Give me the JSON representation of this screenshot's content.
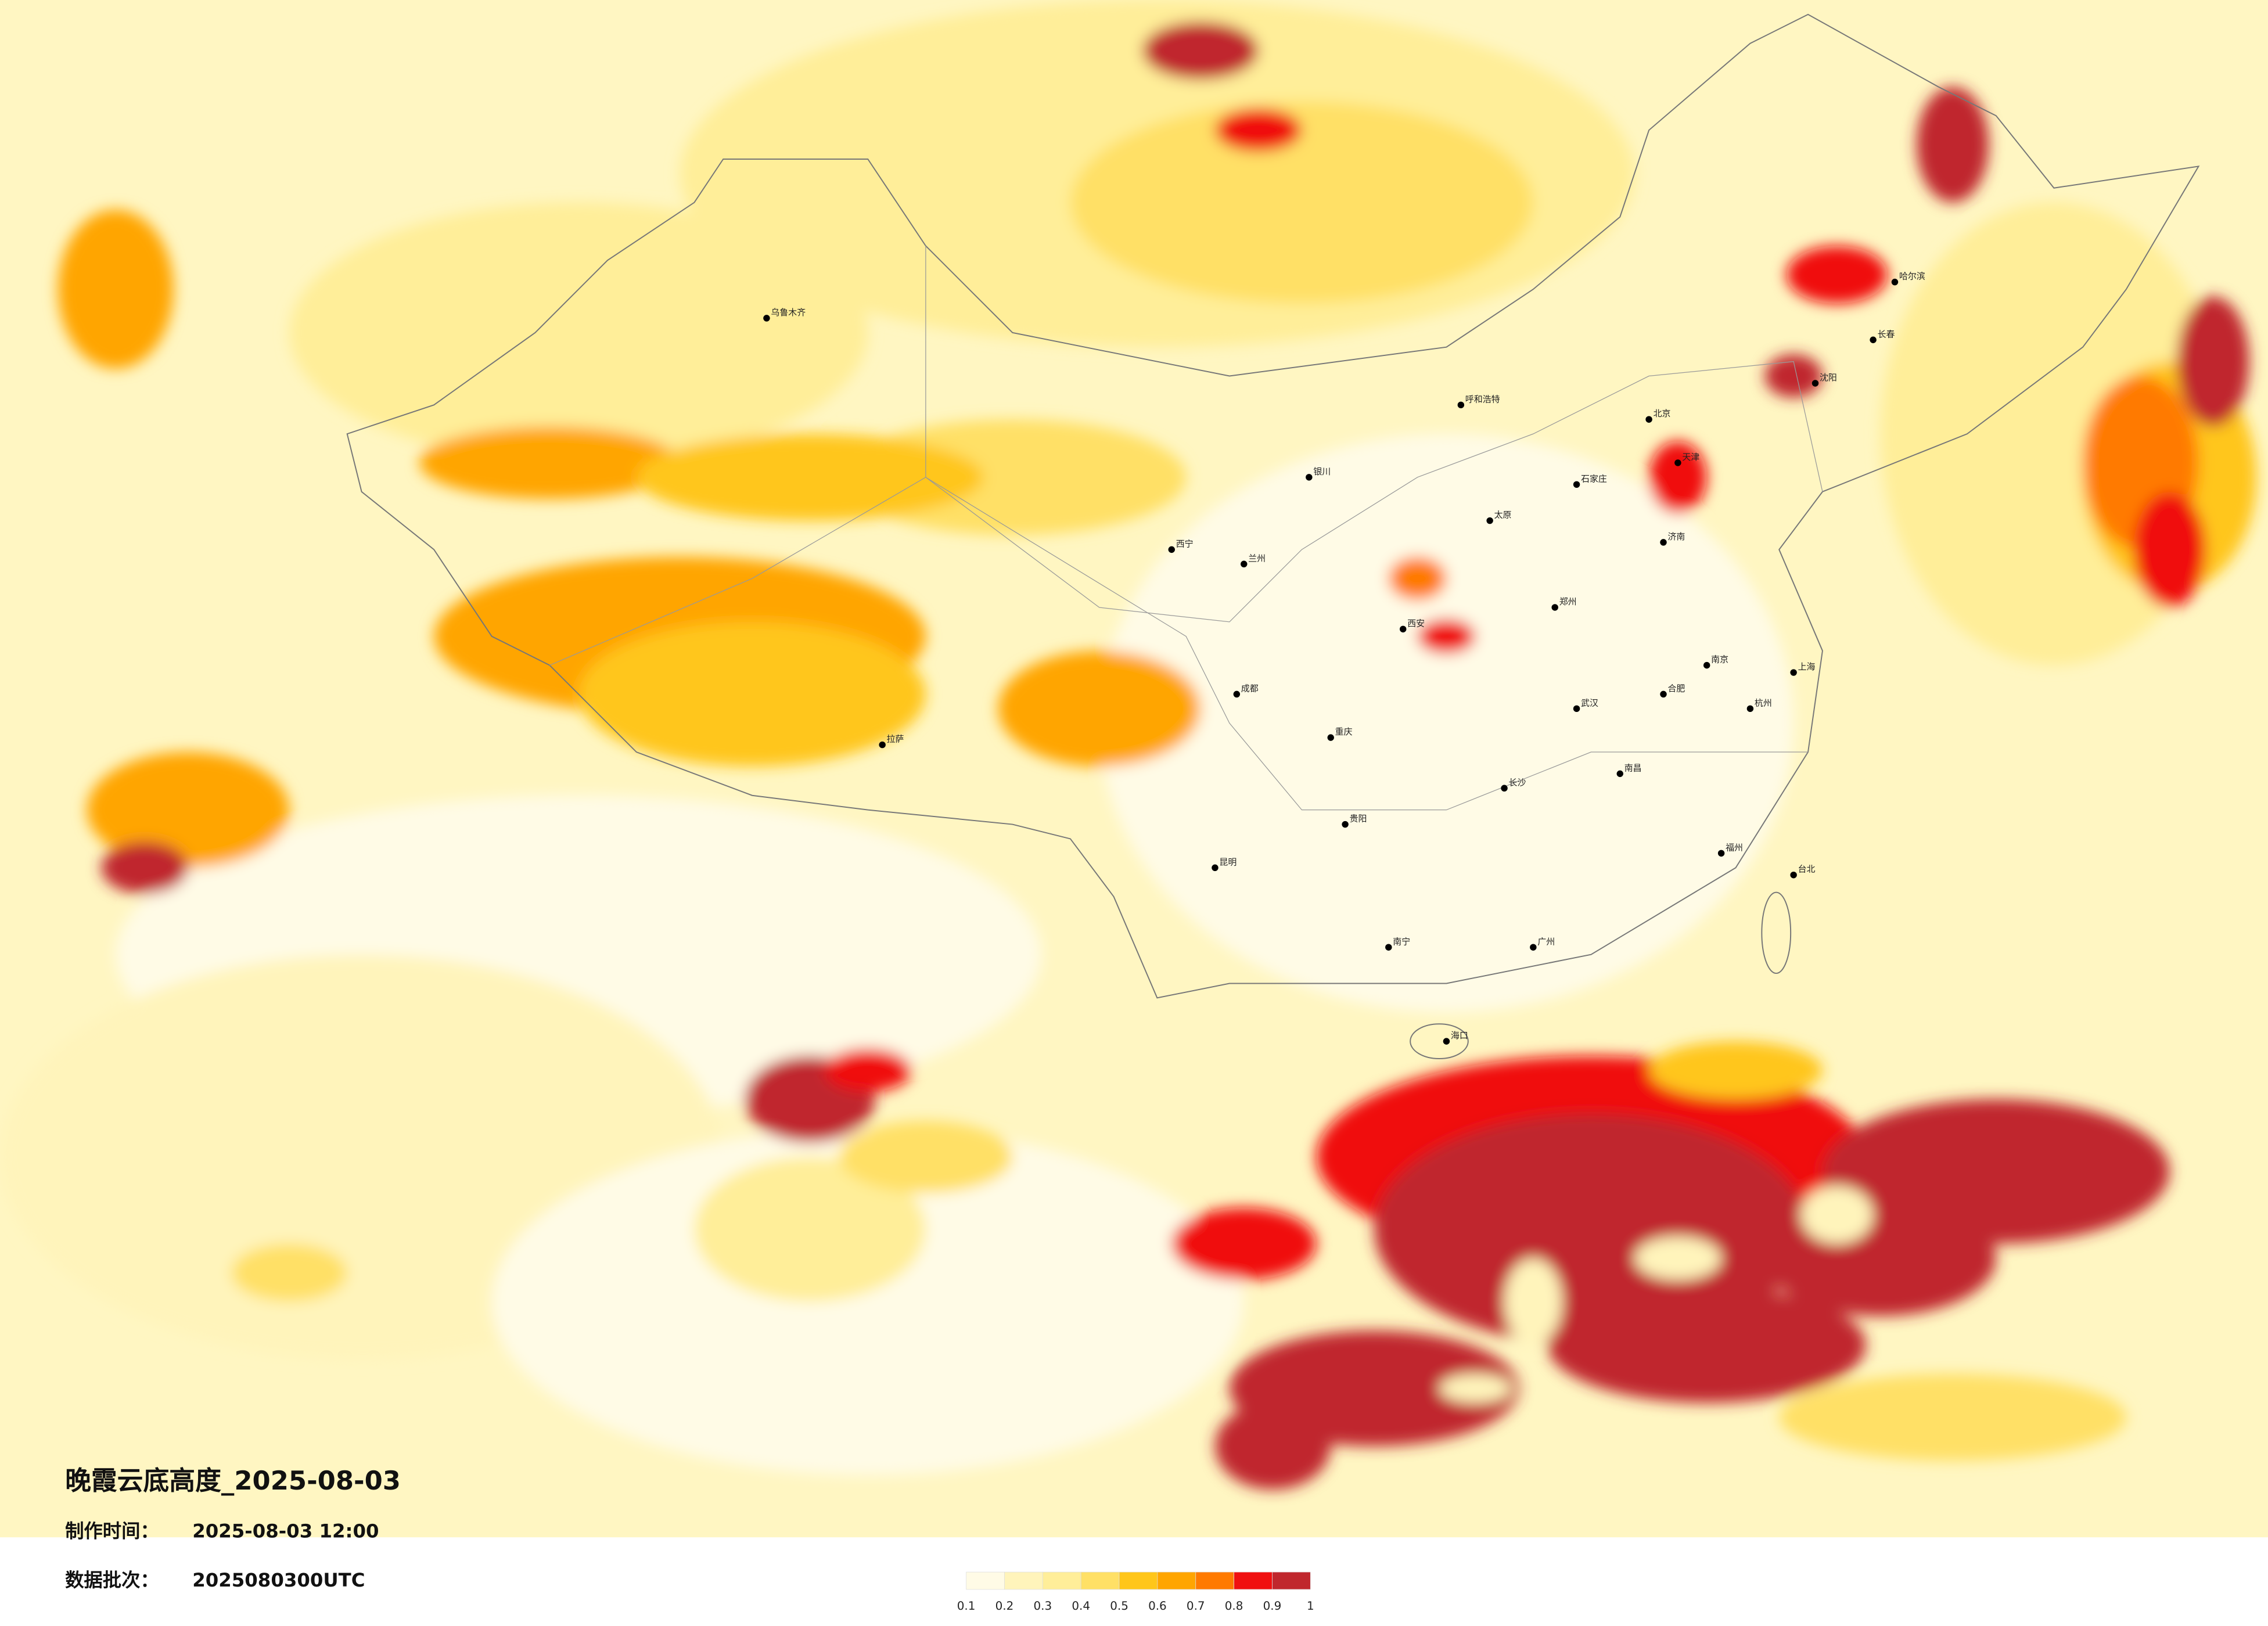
{
  "title": "晚霞云底高度_2025-08-03",
  "production_time": {
    "label": "制作时间：",
    "value": "2025-08-03 12:00"
  },
  "data_batch": {
    "label": "数据批次：",
    "value": "2025080300UTC"
  },
  "legend": {
    "ticks": [
      0.1,
      0.2,
      0.3,
      0.4,
      0.5,
      0.6,
      0.7,
      0.8,
      0.9,
      1
    ],
    "colors": [
      "#fffbe6",
      "#fff4bb",
      "#ffee99",
      "#ffe066",
      "#ffc61a",
      "#ffa500",
      "#ff7a00",
      "#f01010",
      "#c0272d"
    ]
  },
  "cities": [
    "北京",
    "天津",
    "石家庄",
    "太原",
    "呼和浩特",
    "沈阳",
    "长春",
    "哈尔滨",
    "济南",
    "郑州",
    "西安",
    "兰州",
    "西宁",
    "银川",
    "拉萨",
    "乌鲁木齐",
    "成都",
    "重庆",
    "贵阳",
    "昆明",
    "南宁",
    "广州",
    "长沙",
    "武汉",
    "南昌",
    "杭州",
    "上海",
    "南京",
    "合肥",
    "福州",
    "台北",
    "海口"
  ]
}
